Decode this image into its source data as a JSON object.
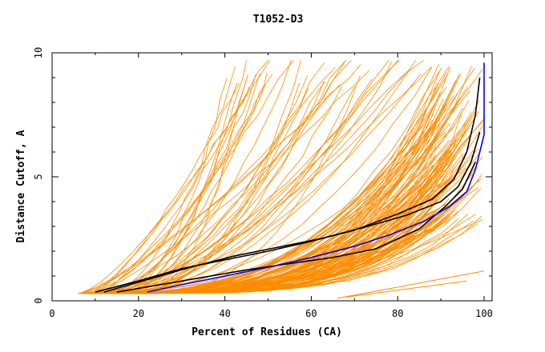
{
  "chart_data": {
    "type": "line",
    "title": "T1052-D3",
    "xlabel": "Percent of Residues (CA)",
    "ylabel": "Distance Cutoff, A",
    "xlim": [
      0,
      100
    ],
    "ylim": [
      0,
      10
    ],
    "x_ticks": [
      0,
      20,
      40,
      60,
      80,
      100
    ],
    "y_ticks": [
      0,
      5,
      10
    ],
    "grid": false,
    "colors": {
      "background_models": "#ff8c00",
      "highlight_black": "#000000",
      "highlight_blue": "#0000ff"
    },
    "series": [
      {
        "color": "#000000",
        "x": [
          10,
          20,
          30,
          40,
          50,
          60,
          70,
          80,
          88,
          93,
          96,
          98,
          99
        ],
        "y": [
          0.35,
          0.8,
          1.3,
          1.65,
          2.0,
          2.4,
          2.85,
          3.5,
          4.1,
          4.9,
          6.0,
          7.5,
          9.0
        ]
      },
      {
        "color": "#000000",
        "x": [
          12,
          22,
          32,
          42,
          52,
          62,
          72,
          82,
          90,
          94,
          97,
          99
        ],
        "y": [
          0.35,
          0.85,
          1.35,
          1.8,
          2.15,
          2.5,
          2.95,
          3.45,
          4.0,
          4.6,
          5.6,
          6.8
        ]
      },
      {
        "color": "#000000",
        "x": [
          15,
          25,
          35,
          45,
          55,
          65,
          75,
          85,
          91,
          95,
          98
        ],
        "y": [
          0.35,
          0.65,
          0.95,
          1.25,
          1.5,
          1.75,
          2.1,
          2.9,
          3.8,
          4.5,
          5.6
        ]
      },
      {
        "color": "#0000ff",
        "x": [
          22,
          30,
          40,
          50,
          60,
          70,
          78,
          86,
          92,
          96,
          98,
          99,
          100,
          100
        ],
        "y": [
          0.35,
          0.65,
          1.0,
          1.35,
          1.75,
          2.2,
          2.65,
          3.2,
          3.8,
          4.4,
          5.3,
          6.0,
          6.7,
          9.6
        ]
      }
    ]
  }
}
